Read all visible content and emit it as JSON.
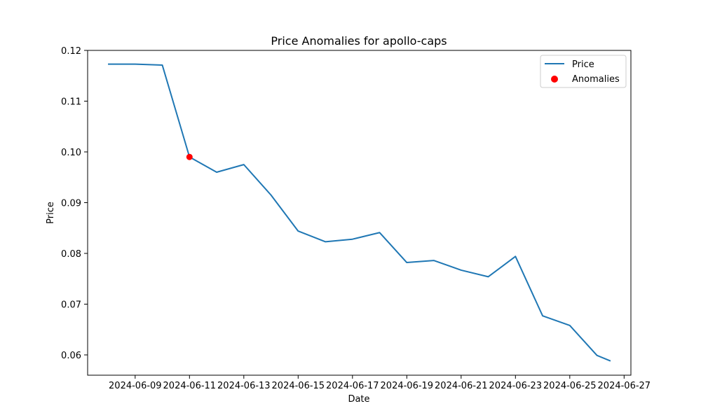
{
  "chart_data": {
    "type": "line",
    "title": "Price Anomalies for apollo-caps",
    "xlabel": "Date",
    "ylabel": "Price",
    "x": [
      "2024-06-08",
      "2024-06-09",
      "2024-06-10",
      "2024-06-11",
      "2024-06-12",
      "2024-06-13",
      "2024-06-14",
      "2024-06-15",
      "2024-06-16",
      "2024-06-17",
      "2024-06-18",
      "2024-06-19",
      "2024-06-20",
      "2024-06-21",
      "2024-06-22",
      "2024-06-23",
      "2024-06-24",
      "2024-06-25",
      "2024-06-26",
      "2024-06-26T12:00"
    ],
    "series": [
      {
        "name": "Price",
        "color": "#1f77b4",
        "values": [
          0.1173,
          0.1173,
          0.1171,
          0.099,
          0.096,
          0.0975,
          0.0915,
          0.0844,
          0.0823,
          0.0828,
          0.0841,
          0.0782,
          0.0786,
          0.0767,
          0.0754,
          0.0794,
          0.0677,
          0.0658,
          0.0599,
          0.0588
        ]
      }
    ],
    "anomalies": {
      "name": "Anomalies",
      "color": "#ff0000",
      "points": [
        {
          "x": "2024-06-11",
          "y": 0.099
        }
      ]
    },
    "xlim": [
      "2024-06-07T06:00",
      "2024-06-27T06:00"
    ],
    "ylim": [
      0.056,
      0.12
    ],
    "xticks": [
      "2024-06-09",
      "2024-06-11",
      "2024-06-13",
      "2024-06-15",
      "2024-06-17",
      "2024-06-19",
      "2024-06-21",
      "2024-06-23",
      "2024-06-25",
      "2024-06-27"
    ],
    "yticks": [
      "0.06",
      "0.07",
      "0.08",
      "0.09",
      "0.10",
      "0.11",
      "0.12"
    ],
    "grid": false,
    "legend_position": "top-right"
  }
}
